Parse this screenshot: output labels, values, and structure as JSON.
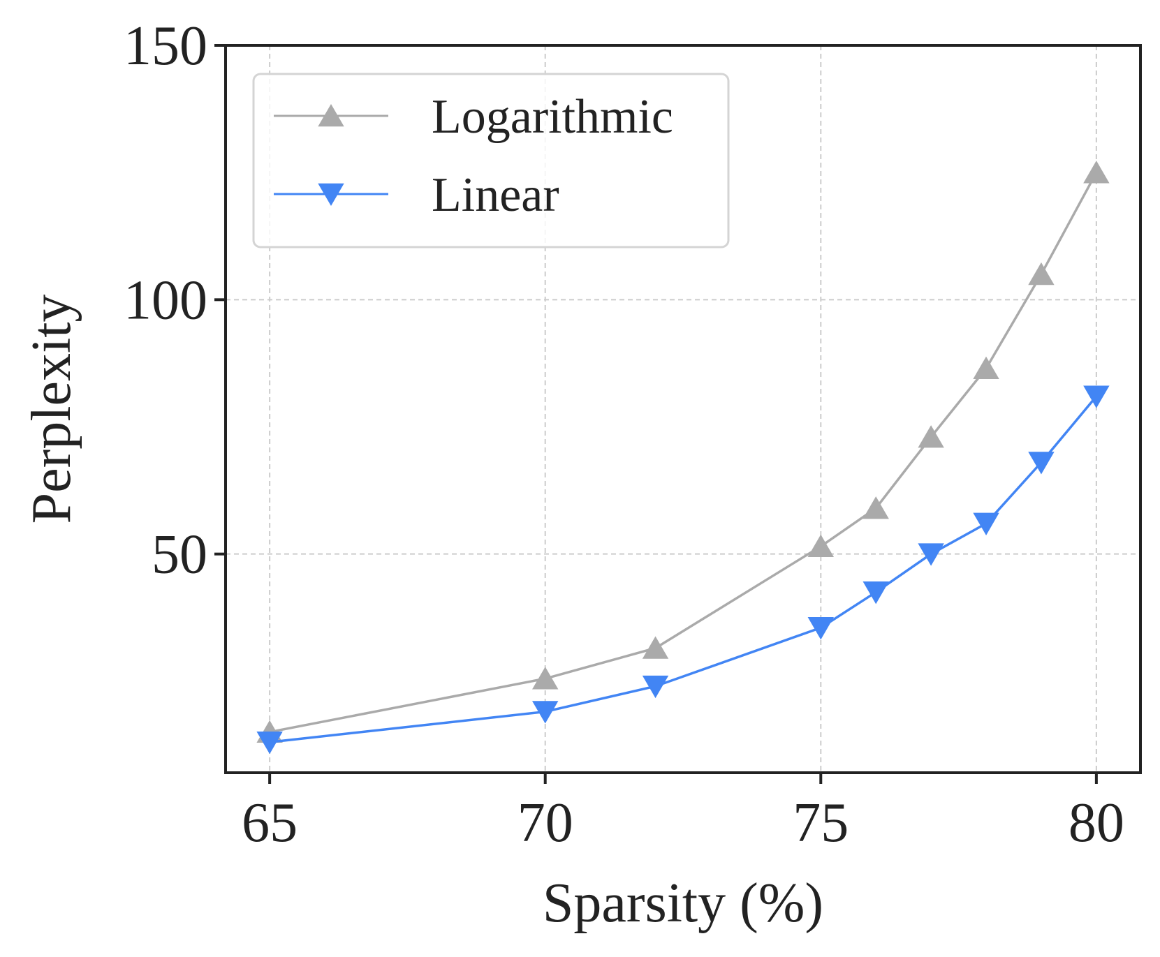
{
  "chart_data": {
    "type": "line",
    "title": "",
    "xlabel": "Sparsity (%)",
    "ylabel": "Perplexity",
    "xlim": [
      64.2,
      80.8
    ],
    "ylim": [
      7,
      150
    ],
    "xticks": [
      65,
      70,
      75,
      80
    ],
    "yticks": [
      50,
      100,
      150
    ],
    "grid": true,
    "legend_position": "top-left",
    "series": [
      {
        "name": "Logarithmic",
        "color": "#aaaaaa",
        "marker": "triangle-up",
        "x": [
          65,
          70,
          72,
          75,
          76,
          77,
          78,
          79,
          80
        ],
        "y": [
          15,
          25.5,
          31.5,
          51.5,
          59,
          73,
          86.5,
          105,
          125
        ]
      },
      {
        "name": "Linear",
        "color": "#4285f4",
        "marker": "triangle-down",
        "x": [
          65,
          70,
          72,
          75,
          76,
          77,
          78,
          79,
          80
        ],
        "y": [
          13,
          19,
          24,
          35.5,
          42.5,
          50,
          56,
          68,
          81
        ]
      }
    ]
  }
}
